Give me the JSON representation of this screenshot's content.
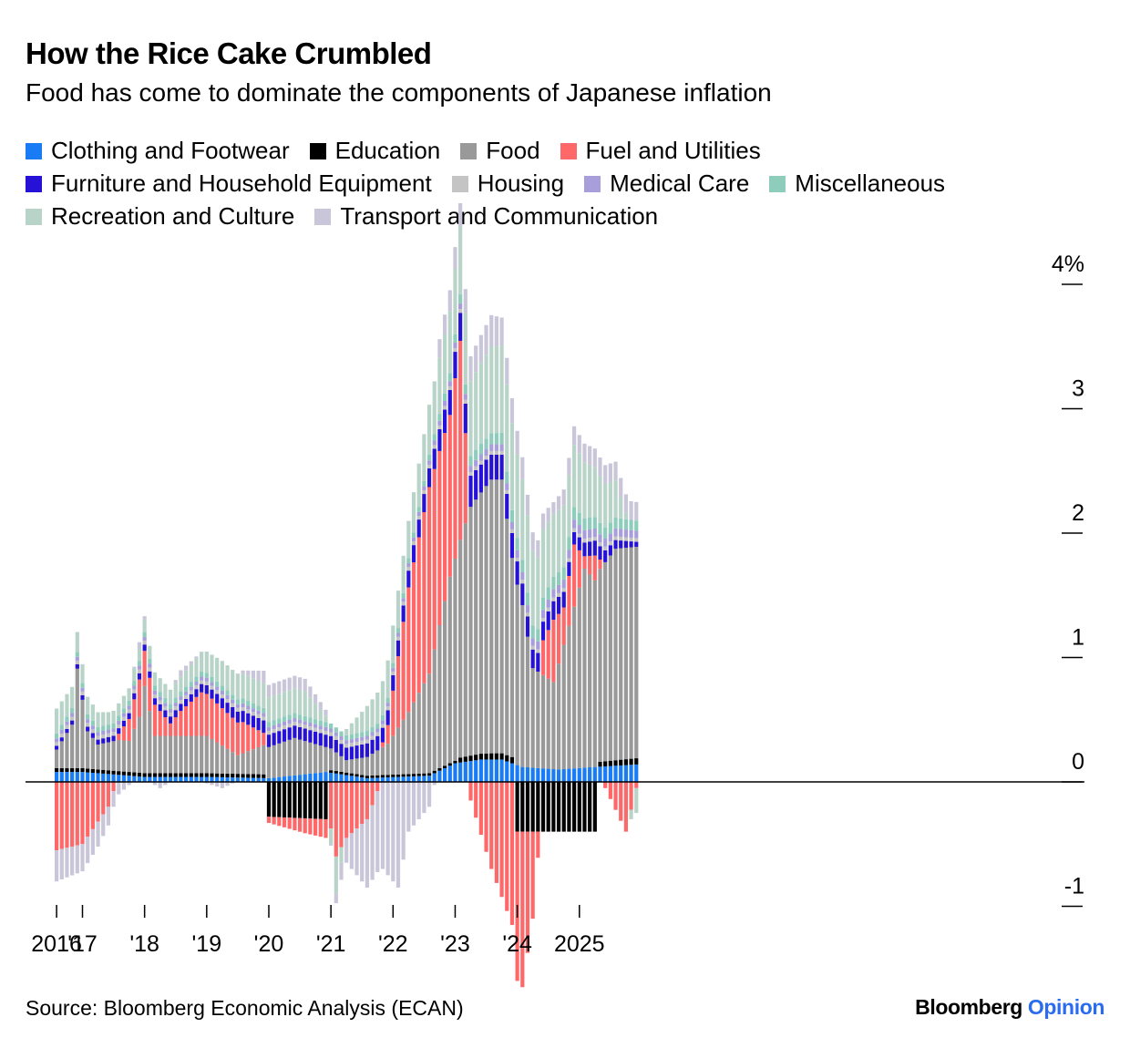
{
  "header": {
    "title": "How the Rice Cake Crumbled",
    "subtitle": "Food has come to dominate the components of Japanese inflation"
  },
  "footer": {
    "source": "Source: Bloomberg Economic Analysis (ECAN)",
    "brand": "Bloomberg",
    "brand_suffix": "Opinion"
  },
  "chart_data": {
    "type": "bar",
    "stacked": true,
    "title": "How the Rice Cake Crumbled",
    "subtitle": "Food has come to dominate the components of Japanese inflation",
    "xlabel": "",
    "ylabel": "",
    "unit": "%",
    "ylim": [
      -1.05,
      4.4
    ],
    "yticks": [
      {
        "value": 4,
        "label": "4%"
      },
      {
        "value": 3,
        "label": "3"
      },
      {
        "value": 2,
        "label": "2"
      },
      {
        "value": 1,
        "label": "1"
      },
      {
        "value": 0,
        "label": "0"
      },
      {
        "value": -1,
        "label": "-1"
      }
    ],
    "xticks": [
      {
        "label": "2016",
        "month": 0
      },
      {
        "label": "'17",
        "month": 5
      },
      {
        "label": "'18",
        "month": 17
      },
      {
        "label": "'19",
        "month": 29
      },
      {
        "label": "'20",
        "month": 41
      },
      {
        "label": "'21",
        "month": 53
      },
      {
        "label": "'22",
        "month": 65
      },
      {
        "label": "'23",
        "month": 77
      },
      {
        "label": "'24",
        "month": 89
      },
      {
        "label": "2025",
        "month": 101
      }
    ],
    "legend_rows": [
      [
        "Clothing and Footwear",
        "Education",
        "Food",
        "Fuel and Utilities"
      ],
      [
        "Furniture and Household Equipment",
        "Housing",
        "Medical Care",
        "Miscellaneous"
      ],
      [
        "Recreation and Culture",
        "Transport and Communication"
      ]
    ],
    "series": [
      {
        "name": "Clothing and Footwear",
        "color": "#1a7cf5",
        "keyframes": [
          [
            0,
            0.08
          ],
          [
            5,
            0.08
          ],
          [
            17,
            0.04
          ],
          [
            29,
            0.04
          ],
          [
            41,
            0.03
          ],
          [
            52,
            0.08
          ],
          [
            60,
            0.03
          ],
          [
            72,
            0.05
          ],
          [
            77,
            0.15
          ],
          [
            82,
            0.18
          ],
          [
            86,
            0.18
          ],
          [
            90,
            0.12
          ],
          [
            97,
            0.1
          ],
          [
            104,
            0.12
          ],
          [
            112,
            0.14
          ]
        ]
      },
      {
        "name": "Education",
        "color": "#000000",
        "keyframes": [
          [
            0,
            0.03
          ],
          [
            40,
            0.03
          ],
          [
            41,
            -0.28
          ],
          [
            52,
            -0.3
          ],
          [
            53,
            0.02
          ],
          [
            77,
            0.02
          ],
          [
            78,
            0.04
          ],
          [
            84,
            0.05
          ],
          [
            88,
            0.05
          ],
          [
            89,
            -0.4
          ],
          [
            104,
            -0.4
          ],
          [
            105,
            0.04
          ],
          [
            112,
            0.05
          ]
        ]
      },
      {
        "name": "Food",
        "color": "#999999",
        "keyframes": [
          [
            0,
            0.15
          ],
          [
            3,
            0.35
          ],
          [
            4,
            0.8
          ],
          [
            6,
            0.3
          ],
          [
            8,
            0.2
          ],
          [
            12,
            0.25
          ],
          [
            14,
            0.25
          ],
          [
            16,
            0.45
          ],
          [
            17,
            0.7
          ],
          [
            19,
            0.3
          ],
          [
            24,
            0.3
          ],
          [
            29,
            0.3
          ],
          [
            35,
            0.15
          ],
          [
            41,
            0.25
          ],
          [
            46,
            0.3
          ],
          [
            52,
            0.2
          ],
          [
            56,
            0.1
          ],
          [
            60,
            0.15
          ],
          [
            64,
            0.25
          ],
          [
            68,
            0.5
          ],
          [
            72,
            0.8
          ],
          [
            76,
            1.5
          ],
          [
            80,
            2.0
          ],
          [
            84,
            2.2
          ],
          [
            86,
            2.2
          ],
          [
            88,
            1.6
          ],
          [
            90,
            1.3
          ],
          [
            92,
            0.8
          ],
          [
            96,
            0.7
          ],
          [
            100,
            1.3
          ],
          [
            102,
            1.6
          ],
          [
            104,
            1.5
          ],
          [
            108,
            1.7
          ],
          [
            112,
            1.7
          ]
        ]
      },
      {
        "name": "Fuel and Utilities",
        "color": "#ff6868",
        "keyframes": [
          [
            0,
            -0.55
          ],
          [
            5,
            -0.5
          ],
          [
            10,
            -0.2
          ],
          [
            12,
            0.05
          ],
          [
            16,
            0.3
          ],
          [
            19,
            0.25
          ],
          [
            22,
            0.1
          ],
          [
            24,
            0.2
          ],
          [
            28,
            0.35
          ],
          [
            32,
            0.3
          ],
          [
            36,
            0.25
          ],
          [
            40,
            0.1
          ],
          [
            41,
            -0.05
          ],
          [
            48,
            -0.12
          ],
          [
            52,
            -0.15
          ],
          [
            54,
            -0.6
          ],
          [
            56,
            -0.45
          ],
          [
            60,
            -0.3
          ],
          [
            64,
            0.15
          ],
          [
            68,
            1.0
          ],
          [
            72,
            1.5
          ],
          [
            76,
            1.3
          ],
          [
            78,
            1.6
          ],
          [
            80,
            -0.15
          ],
          [
            84,
            -0.7
          ],
          [
            88,
            -1.15
          ],
          [
            90,
            -1.25
          ],
          [
            92,
            -0.7
          ],
          [
            94,
            0.28
          ],
          [
            96,
            0.5
          ],
          [
            98,
            0.3
          ],
          [
            100,
            0.5
          ],
          [
            102,
            0.1
          ],
          [
            104,
            0.2
          ],
          [
            106,
            -0.05
          ],
          [
            110,
            -0.4
          ],
          [
            112,
            -0.05
          ]
        ]
      },
      {
        "name": "Furniture and Household Equipment",
        "color": "#2612d6",
        "keyframes": [
          [
            0,
            0.03
          ],
          [
            16,
            0.05
          ],
          [
            26,
            0.06
          ],
          [
            32,
            0.08
          ],
          [
            40,
            0.1
          ],
          [
            48,
            0.1
          ],
          [
            56,
            0.1
          ],
          [
            64,
            0.12
          ],
          [
            72,
            0.15
          ],
          [
            76,
            0.2
          ],
          [
            80,
            0.25
          ],
          [
            84,
            0.2
          ],
          [
            88,
            0.2
          ],
          [
            92,
            0.15
          ],
          [
            96,
            0.15
          ],
          [
            100,
            0.1
          ],
          [
            104,
            0.12
          ],
          [
            108,
            0.07
          ],
          [
            112,
            0.04
          ]
        ]
      },
      {
        "name": "Housing",
        "color": "#c4c4c4",
        "keyframes": [
          [
            0,
            0.03
          ],
          [
            100,
            0.03
          ],
          [
            112,
            0.03
          ]
        ]
      },
      {
        "name": "Medical Care",
        "color": "#a79edb",
        "keyframes": [
          [
            0,
            0.03
          ],
          [
            70,
            0.03
          ],
          [
            80,
            0.05
          ],
          [
            90,
            0.06
          ],
          [
            100,
            0.07
          ],
          [
            112,
            0.06
          ]
        ]
      },
      {
        "name": "Miscellaneous",
        "color": "#8ecdbb",
        "keyframes": [
          [
            0,
            0.04
          ],
          [
            70,
            0.04
          ],
          [
            80,
            0.08
          ],
          [
            90,
            0.1
          ],
          [
            100,
            0.1
          ],
          [
            112,
            0.08
          ]
        ]
      },
      {
        "name": "Recreation and Culture",
        "color": "#b8d4c8",
        "keyframes": [
          [
            0,
            0.2
          ],
          [
            10,
            0.1
          ],
          [
            16,
            0.1
          ],
          [
            24,
            0.12
          ],
          [
            32,
            0.2
          ],
          [
            40,
            0.2
          ],
          [
            48,
            0.2
          ],
          [
            52,
            0.05
          ],
          [
            54,
            -0.3
          ],
          [
            56,
            0.05
          ],
          [
            60,
            0.2
          ],
          [
            64,
            0.3
          ],
          [
            68,
            0.3
          ],
          [
            72,
            0.4
          ],
          [
            76,
            0.5
          ],
          [
            80,
            0.6
          ],
          [
            84,
            0.7
          ],
          [
            88,
            0.7
          ],
          [
            92,
            0.6
          ],
          [
            96,
            0.5
          ],
          [
            100,
            0.5
          ],
          [
            104,
            0.4
          ],
          [
            108,
            0.3
          ],
          [
            112,
            -0.2
          ]
        ]
      },
      {
        "name": "Transport and Communication",
        "color": "#c9c6d9",
        "keyframes": [
          [
            0,
            -0.25
          ],
          [
            8,
            -0.2
          ],
          [
            12,
            -0.1
          ],
          [
            16,
            0.05
          ],
          [
            20,
            -0.05
          ],
          [
            24,
            0.05
          ],
          [
            32,
            -0.05
          ],
          [
            40,
            0.1
          ],
          [
            48,
            0.1
          ],
          [
            52,
            0.05
          ],
          [
            56,
            -0.2
          ],
          [
            60,
            -0.55
          ],
          [
            66,
            -0.85
          ],
          [
            68,
            -0.4
          ],
          [
            72,
            -0.2
          ],
          [
            74,
            0.15
          ],
          [
            80,
            0.2
          ],
          [
            84,
            0.25
          ],
          [
            88,
            0.2
          ],
          [
            92,
            0.15
          ],
          [
            96,
            0.1
          ],
          [
            100,
            0.15
          ],
          [
            104,
            0.15
          ],
          [
            108,
            0.15
          ],
          [
            112,
            0.15
          ]
        ]
      }
    ]
  }
}
